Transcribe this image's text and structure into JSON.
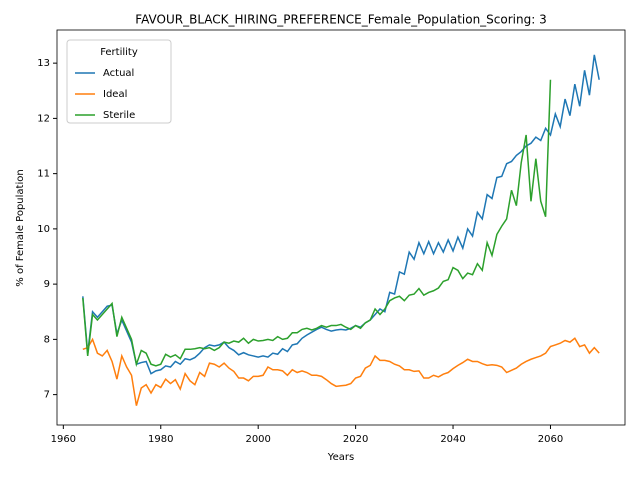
{
  "chart_data": {
    "type": "line",
    "title": "FAVOUR_BLACK_HIRING_PREFERENCE_Female_Population_Scoring: 3",
    "x_label": "Years",
    "y_label": "% of Female Population",
    "legend_title": "Fertility",
    "legend_loc": "upper left",
    "x": [
      1964,
      1965,
      1966,
      1967,
      1968,
      1969,
      1970,
      1971,
      1972,
      1973,
      1974,
      1975,
      1976,
      1977,
      1978,
      1979,
      1980,
      1981,
      1982,
      1983,
      1984,
      1985,
      1986,
      1987,
      1988,
      1989,
      1990,
      1991,
      1992,
      1993,
      1994,
      1995,
      1996,
      1997,
      1998,
      1999,
      2000,
      2001,
      2002,
      2003,
      2004,
      2005,
      2006,
      2007,
      2008,
      2009,
      2010,
      2011,
      2012,
      2013,
      2014,
      2015,
      2016,
      2017,
      2018,
      2019,
      2020,
      2021,
      2022,
      2023,
      2024,
      2025,
      2026,
      2027,
      2028,
      2029,
      2030,
      2031,
      2032,
      2033,
      2034,
      2035,
      2036,
      2037,
      2038,
      2039,
      2040,
      2041,
      2042,
      2043,
      2044,
      2045,
      2046,
      2047,
      2048,
      2049,
      2050,
      2051,
      2052,
      2053,
      2054,
      2055,
      2056,
      2057,
      2058,
      2059,
      2060,
      2061,
      2062,
      2063,
      2064,
      2065,
      2066,
      2067,
      2068,
      2069,
      2070
    ],
    "series": [
      {
        "name": "Actual",
        "color": "#1f77b4",
        "values": [
          8.78,
          7.75,
          8.5,
          8.4,
          8.5,
          8.6,
          8.62,
          8.1,
          8.35,
          8.15,
          7.95,
          7.55,
          7.58,
          7.6,
          7.38,
          7.43,
          7.45,
          7.52,
          7.5,
          7.6,
          7.55,
          7.65,
          7.63,
          7.67,
          7.75,
          7.85,
          7.9,
          7.88,
          7.9,
          7.95,
          7.85,
          7.8,
          7.72,
          7.76,
          7.72,
          7.7,
          7.68,
          7.7,
          7.68,
          7.75,
          7.73,
          7.83,
          7.78,
          7.9,
          7.92,
          8.02,
          8.08,
          8.13,
          8.18,
          8.22,
          8.18,
          8.15,
          8.17,
          8.18,
          8.17,
          8.2,
          8.25,
          8.22,
          8.3,
          8.35,
          8.45,
          8.55,
          8.5,
          8.85,
          8.82,
          9.22,
          9.18,
          9.58,
          9.45,
          9.75,
          9.55,
          9.77,
          9.55,
          9.75,
          9.58,
          9.8,
          9.6,
          9.85,
          9.65,
          10.0,
          9.87,
          10.3,
          10.18,
          10.62,
          10.55,
          10.93,
          10.95,
          11.18,
          11.22,
          11.33,
          11.4,
          11.5,
          11.55,
          11.66,
          11.6,
          11.82,
          11.7,
          12.08,
          11.85,
          12.35,
          12.05,
          12.62,
          12.22,
          12.87,
          12.42,
          13.15,
          12.7
        ]
      },
      {
        "name": "Ideal",
        "color": "#ff7f0e",
        "values": [
          7.82,
          7.85,
          8.0,
          7.75,
          7.7,
          7.8,
          7.6,
          7.28,
          7.7,
          7.5,
          7.35,
          6.8,
          7.12,
          7.18,
          7.03,
          7.18,
          7.13,
          7.28,
          7.2,
          7.27,
          7.1,
          7.38,
          7.25,
          7.18,
          7.4,
          7.33,
          7.57,
          7.55,
          7.5,
          7.57,
          7.48,
          7.42,
          7.3,
          7.3,
          7.25,
          7.33,
          7.33,
          7.35,
          7.5,
          7.45,
          7.45,
          7.43,
          7.35,
          7.45,
          7.4,
          7.43,
          7.4,
          7.35,
          7.35,
          7.33,
          7.27,
          7.2,
          7.15,
          7.16,
          7.17,
          7.2,
          7.3,
          7.33,
          7.48,
          7.53,
          7.7,
          7.62,
          7.62,
          7.6,
          7.55,
          7.52,
          7.45,
          7.45,
          7.42,
          7.43,
          7.3,
          7.3,
          7.35,
          7.32,
          7.37,
          7.4,
          7.47,
          7.53,
          7.58,
          7.64,
          7.6,
          7.6,
          7.56,
          7.53,
          7.54,
          7.53,
          7.5,
          7.4,
          7.44,
          7.48,
          7.55,
          7.6,
          7.64,
          7.67,
          7.7,
          7.75,
          7.87,
          7.9,
          7.93,
          7.98,
          7.95,
          8.02,
          7.87,
          7.9,
          7.75,
          7.85,
          7.75
        ]
      },
      {
        "name": "Sterile",
        "color": "#2ca02c",
        "values": [
          8.75,
          7.7,
          8.45,
          8.35,
          8.45,
          8.55,
          8.65,
          8.05,
          8.4,
          8.2,
          8.0,
          7.55,
          7.8,
          7.75,
          7.55,
          7.52,
          7.55,
          7.73,
          7.68,
          7.72,
          7.65,
          7.82,
          7.82,
          7.83,
          7.85,
          7.83,
          7.85,
          7.8,
          7.85,
          7.95,
          7.93,
          7.97,
          7.95,
          8.02,
          7.93,
          8.0,
          7.97,
          7.98,
          8.0,
          7.98,
          8.05,
          8.0,
          8.02,
          8.12,
          8.12,
          8.18,
          8.2,
          8.17,
          8.2,
          8.25,
          8.22,
          8.25,
          8.25,
          8.27,
          8.22,
          8.18,
          8.25,
          8.2,
          8.3,
          8.35,
          8.55,
          8.45,
          8.55,
          8.7,
          8.75,
          8.78,
          8.7,
          8.8,
          8.82,
          8.92,
          8.8,
          8.85,
          8.88,
          8.93,
          9.05,
          9.08,
          9.3,
          9.25,
          9.1,
          9.2,
          9.17,
          9.37,
          9.25,
          9.75,
          9.52,
          9.9,
          10.05,
          10.18,
          10.7,
          10.42,
          11.2,
          11.7,
          10.5,
          11.27,
          10.5,
          10.22,
          12.7,
          null,
          null,
          null,
          null,
          null,
          null,
          null,
          null,
          null,
          null
        ]
      }
    ],
    "xlim": [
      1958.7,
      2075.3
    ],
    "ylim": [
      6.45,
      13.6
    ],
    "xticks": [
      1960,
      1980,
      2000,
      2020,
      2040,
      2060
    ],
    "yticks": [
      7,
      8,
      9,
      10,
      11,
      12,
      13
    ]
  }
}
